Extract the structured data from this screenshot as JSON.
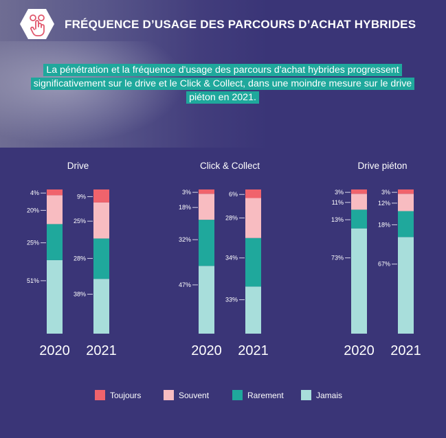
{
  "header": {
    "title": "FRÉQUENCE D’USAGE DES PARCOURS D’ACHAT HYBRIDES",
    "subtitle": "La pénétration et la fréquence d'usage des parcours d'achat hybrides progressent significativement sur le drive et le Click & Collect, dans une moindre mesure sur le drive piéton en 2021.",
    "icon": "hand-tap-icon"
  },
  "colors": {
    "Toujours": "#f0636c",
    "Souvent": "#f8bcc1",
    "Rarement": "#1fa89c",
    "Jamais": "#a8dedb",
    "background": "#3a3577",
    "accent": "#1fa89c"
  },
  "chart_data": {
    "type": "bar",
    "stacked": true,
    "series_order": [
      "Jamais",
      "Rarement",
      "Souvent",
      "Toujours"
    ],
    "legend": [
      "Toujours",
      "Souvent",
      "Rarement",
      "Jamais"
    ],
    "legend_position": "bottom",
    "groups": [
      {
        "title": "Drive",
        "bars": [
          {
            "year": "2020",
            "values": {
              "Jamais": 51,
              "Rarement": 25,
              "Souvent": 20,
              "Toujours": 4
            },
            "labels": {
              "Jamais": "51%",
              "Rarement": "25%",
              "Souvent": "20%",
              "Toujours": "4%"
            }
          },
          {
            "year": "2021",
            "values": {
              "Jamais": 38,
              "Rarement": 28,
              "Souvent": 25,
              "Toujours": 9
            },
            "labels": {
              "Jamais": "38%",
              "Rarement": "28%",
              "Souvent": "25%",
              "Toujours": "9%"
            }
          }
        ]
      },
      {
        "title": "Click & Collect",
        "bars": [
          {
            "year": "2020",
            "values": {
              "Jamais": 47,
              "Rarement": 32,
              "Souvent": 18,
              "Toujours": 3
            },
            "labels": {
              "Jamais": "47%",
              "Rarement": "32%",
              "Souvent": "18%",
              "Toujours": "3%"
            }
          },
          {
            "year": "2021",
            "values": {
              "Jamais": 33,
              "Rarement": 34,
              "Souvent": 28,
              "Toujours": 6
            },
            "labels": {
              "Jamais": "33%",
              "Rarement": "34%",
              "Souvent": "28%",
              "Toujours": "6%"
            }
          }
        ]
      },
      {
        "title": "Drive piéton",
        "bars": [
          {
            "year": "2020",
            "values": {
              "Jamais": 73,
              "Rarement": 13,
              "Souvent": 11,
              "Toujours": 3
            },
            "labels": {
              "Jamais": "73%",
              "Rarement": "13%",
              "Souvent": "11%",
              "Toujours": "3%"
            }
          },
          {
            "year": "2021",
            "values": {
              "Jamais": 67,
              "Rarement": 18,
              "Souvent": 12,
              "Toujours": 3
            },
            "labels": {
              "Jamais": "67%",
              "Rarement": "18%",
              "Souvent": "12%",
              "Toujours": "3%"
            }
          }
        ]
      }
    ]
  }
}
